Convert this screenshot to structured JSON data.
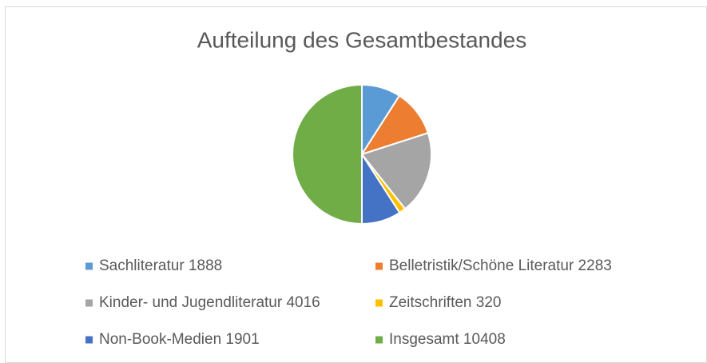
{
  "chart_data": {
    "type": "pie",
    "title": "Aufteilung des Gesamtbestandes",
    "categories": [
      "Sachliteratur 1888",
      "Belletristik/Schöne Literatur 2283",
      "Kinder- und Jugendliteratur 4016",
      "Zeitschriften 320",
      "Non-Book-Medien 1901",
      "Insgesamt 10408"
    ],
    "values": [
      1888,
      2283,
      4016,
      320,
      1901,
      10408
    ],
    "colors": [
      "#5b9bd5",
      "#ed7d31",
      "#a5a5a5",
      "#ffc000",
      "#4472c4",
      "#70ad47"
    ],
    "legend": "bottom"
  }
}
